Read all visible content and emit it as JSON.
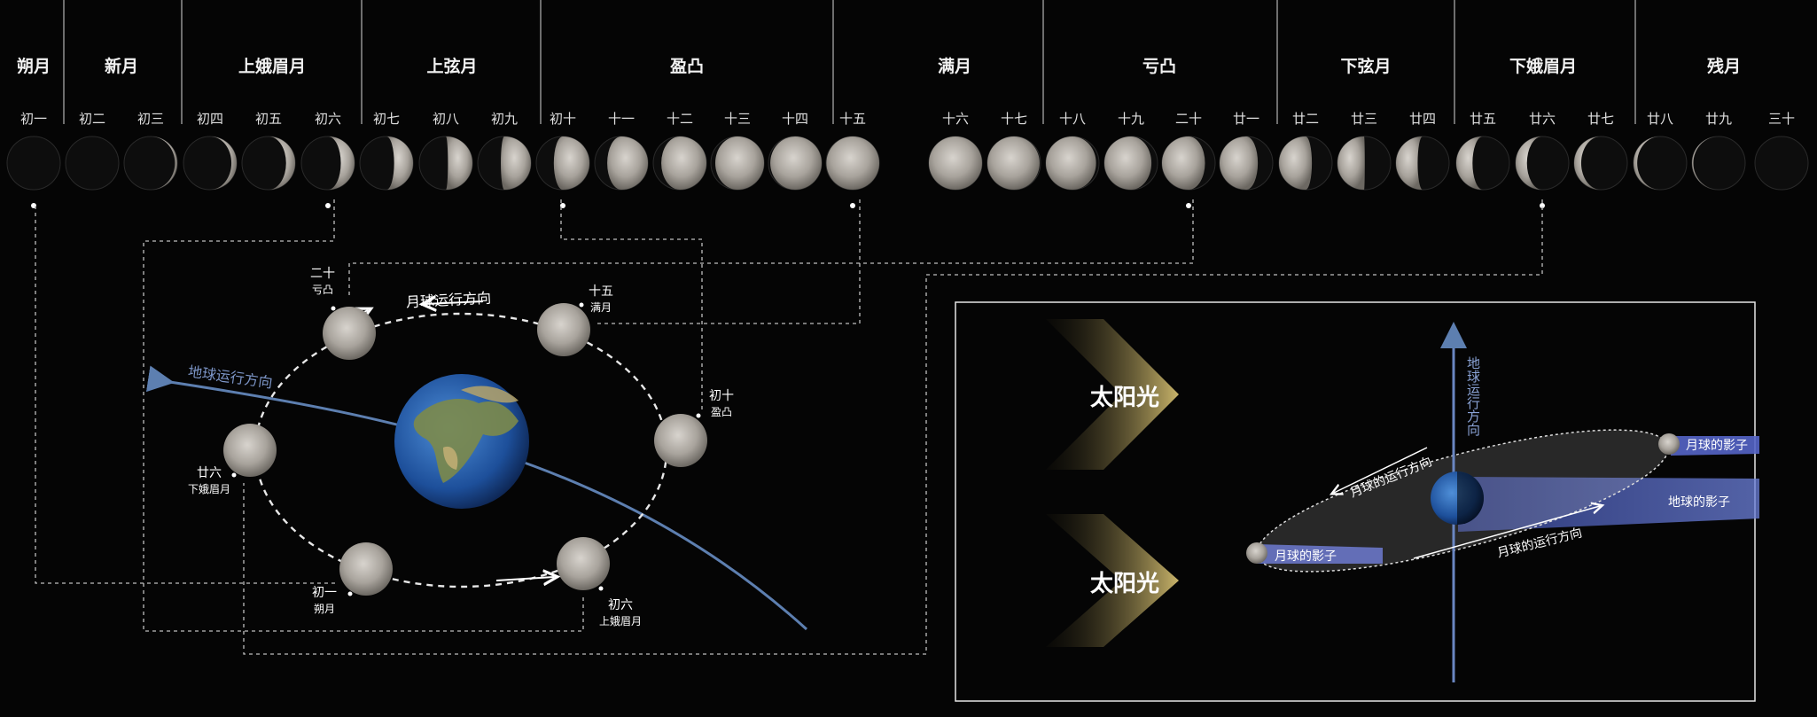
{
  "phases": [
    "朔月",
    "新月",
    "上娥眉月",
    "上弦月",
    "盈凸",
    "满月",
    "亏凸",
    "下弦月",
    "下娥眉月",
    "残月"
  ],
  "days": [
    "初一",
    "初二",
    "初三",
    "初四",
    "初五",
    "初六",
    "初七",
    "初八",
    "初九",
    "初十",
    "十一",
    "十二",
    "十三",
    "十四",
    "十五",
    "十六",
    "十七",
    "十八",
    "十九",
    "二十",
    "廿一",
    "廿二",
    "廿三",
    "廿四",
    "廿五",
    "廿六",
    "廿七",
    "廿八",
    "廿九",
    "三十"
  ],
  "orbit": {
    "moon_direction": "月球运行方向",
    "earth_direction": "地球运行方向",
    "labels": {
      "d20": {
        "day": "二十",
        "phase": "亏凸"
      },
      "d15": {
        "day": "十五",
        "phase": "满月"
      },
      "d10": {
        "day": "初十",
        "phase": "盈凸"
      },
      "d26": {
        "day": "廿六",
        "phase": "下娥眉月"
      },
      "d1": {
        "day": "初一",
        "phase": "朔月"
      },
      "d6": {
        "day": "初六",
        "phase": "上娥眉月"
      }
    }
  },
  "eclipse": {
    "sunlight_1": "太阳光",
    "sunlight_2": "太阳光",
    "earth_direction": "地球运行方向",
    "moon_direction_upper": "月球的运行方向",
    "moon_direction_lower": "月球的运行方向",
    "moon_shadow_right": "月球的影子",
    "moon_shadow_left": "月球的影子",
    "earth_shadow": "地球的影子"
  },
  "colors": {
    "background": "#050505",
    "earth_path": "#5d7fb0",
    "sunlight": "#c9b46a",
    "shadow_band": "#5565c8"
  }
}
